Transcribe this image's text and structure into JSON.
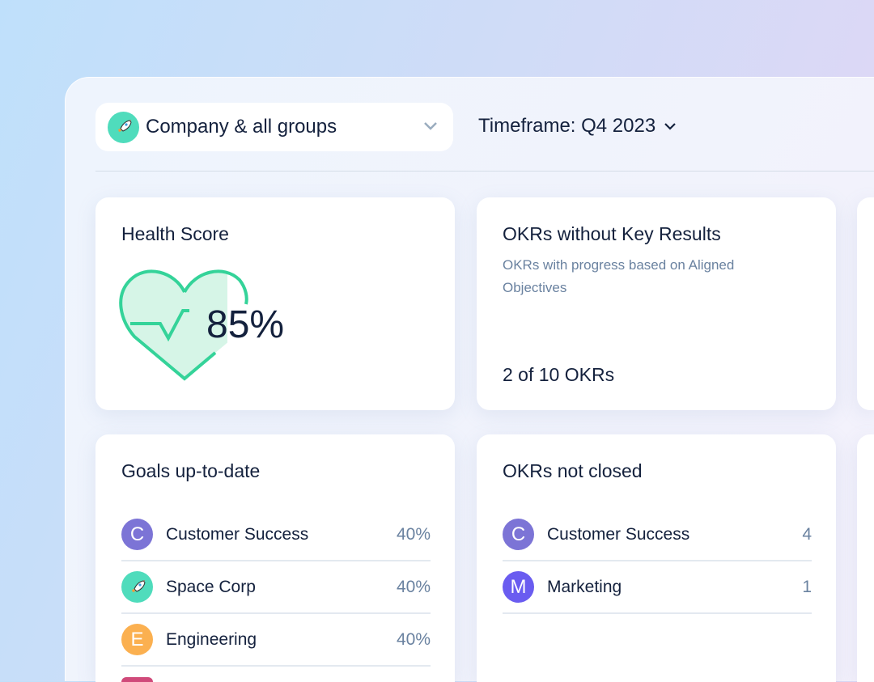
{
  "filter": {
    "group": "Company & all groups",
    "group_icon": "rocket-icon",
    "timeframe": "Timeframe: Q4 2023"
  },
  "health": {
    "title": "Health Score",
    "value": "85%",
    "fill_percent": 85,
    "color": "#34d399"
  },
  "okrs_no_kr": {
    "title": "OKRs without Key Results",
    "subtitle": "OKRs with progress based on Aligned Objectives",
    "count": "2 of 10 OKRs"
  },
  "goals": {
    "title": "Goals up-to-date",
    "items": [
      {
        "letter": "C",
        "name": "Customer Success",
        "value": "40%",
        "color": "#7c74d6"
      },
      {
        "letter": "",
        "icon": "rocket-icon",
        "name": "Space Corp",
        "value": "40%",
        "color": "#4fdcbc"
      },
      {
        "letter": "E",
        "name": "Engineering",
        "value": "40%",
        "color": "#fbb050"
      },
      {
        "letter": "",
        "name": "",
        "value": "",
        "color": "#d04a7a"
      }
    ]
  },
  "not_closed": {
    "title": "OKRs not closed",
    "items": [
      {
        "letter": "C",
        "name": "Customer Success",
        "value": "4",
        "color": "#7c74d6"
      },
      {
        "letter": "M",
        "name": "Marketing",
        "value": "1",
        "color": "#6a5cf0"
      }
    ]
  }
}
